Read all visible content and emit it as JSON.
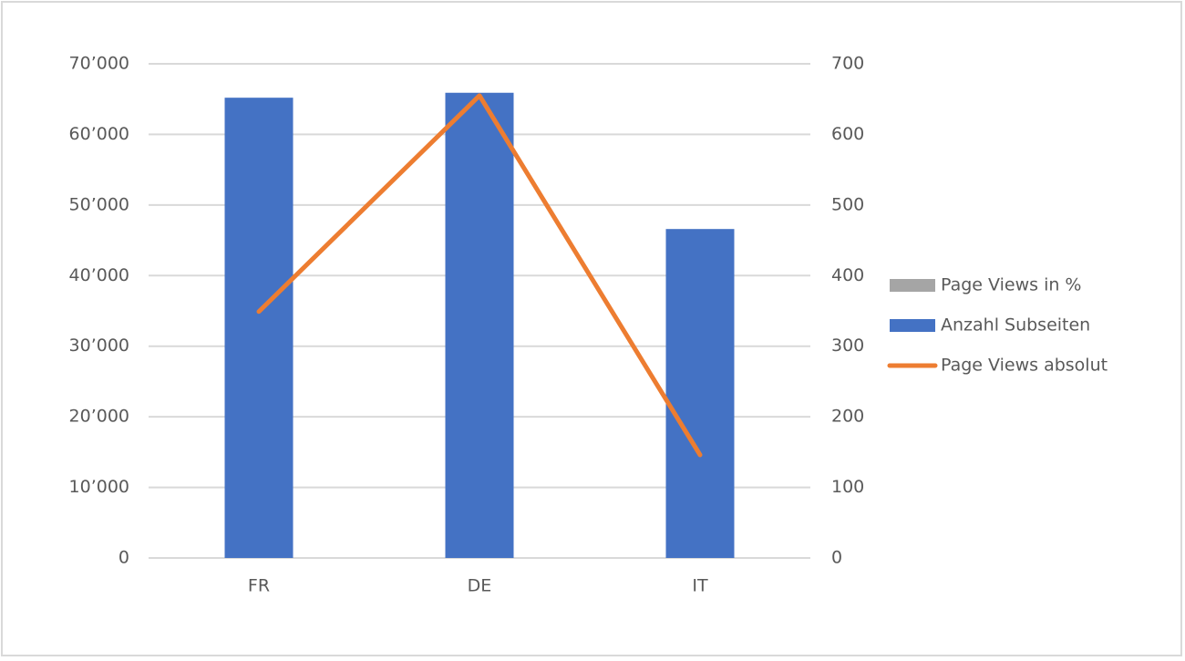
{
  "chart_data": {
    "type": "bar-line",
    "categories": [
      "FR",
      "DE",
      "IT"
    ],
    "series": [
      {
        "name": "Page Views in %",
        "color": "#a5a5a5",
        "type": "bar",
        "values": [
          0,
          0,
          0
        ]
      },
      {
        "name": "Anzahl Subseiten",
        "color": "#4472c4",
        "type": "bar",
        "values": [
          65200,
          65900,
          46600
        ]
      },
      {
        "name": "Page Views absolut",
        "color": "#ed7d31",
        "type": "line",
        "axis": "y2",
        "values": [
          349,
          655,
          146
        ]
      }
    ],
    "ylim": [
      0,
      70000
    ],
    "yticks": [
      0,
      {
        "value": 10000,
        "label": "10’000"
      },
      {
        "value": 20000,
        "label": "20’000"
      },
      {
        "value": 30000,
        "label": "30’000"
      },
      {
        "value": 40000,
        "label": "40’000"
      },
      {
        "value": 50000,
        "label": "50’000"
      },
      {
        "value": 60000,
        "label": "60’000"
      },
      {
        "value": 70000,
        "label": "70’000"
      }
    ],
    "y2lim": [
      0,
      700
    ],
    "y2ticks": [
      0,
      100,
      200,
      300,
      400,
      500,
      600,
      700
    ],
    "grid": true,
    "legend": "right"
  }
}
